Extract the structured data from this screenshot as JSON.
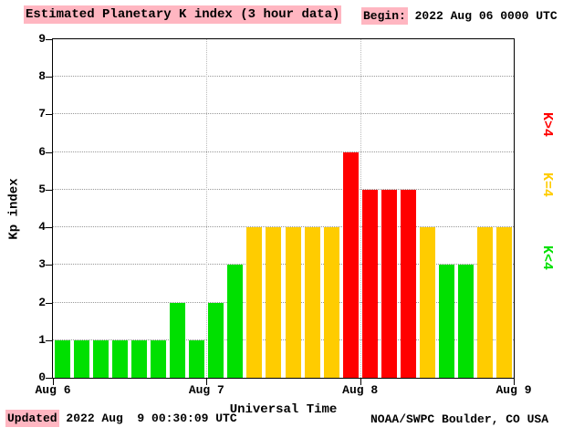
{
  "header": {
    "title": "Estimated Planetary K index (3 hour data)",
    "begin_label": "Begin:",
    "begin_value": " 2022 Aug 06 0000 UTC"
  },
  "axes": {
    "y_title": "Kp index",
    "x_title": "Universal Time"
  },
  "legend": {
    "items": [
      {
        "label": "K>4",
        "color_key": "red"
      },
      {
        "label": "K=4",
        "color_key": "yellow"
      },
      {
        "label": "K<4",
        "color_key": "green"
      }
    ]
  },
  "footer": {
    "updated_label": "Updated",
    "updated_value": " 2022 Aug  9 00:30:09 UTC",
    "credit": "NOAA/SWPC Boulder, CO USA"
  },
  "colors": {
    "green": "#00e000",
    "yellow": "#ffcc00",
    "red": "#ff0000",
    "highlight_pink": "#ffb6c1",
    "grid": "#999999"
  },
  "chart_data": {
    "type": "bar",
    "title": "Estimated Planetary K index (3 hour data)",
    "xlabel": "Universal Time",
    "ylabel": "Kp index",
    "ylim": [
      0,
      9
    ],
    "yticks": [
      0,
      1,
      2,
      3,
      4,
      5,
      6,
      7,
      8,
      9
    ],
    "x_day_labels": [
      "Aug 6",
      "Aug 7",
      "Aug 8",
      "Aug 9"
    ],
    "bar_interval_hours": 3,
    "begin_utc": "2022 Aug 06 0000 UTC",
    "values": [
      1,
      1,
      1,
      1,
      1,
      1,
      2,
      1,
      2,
      3,
      4,
      4,
      4,
      4,
      4,
      6,
      5,
      5,
      5,
      4,
      3,
      3,
      4,
      4
    ],
    "color_rule": {
      "green": "Kp < 4",
      "yellow": "Kp = 4",
      "red": "Kp > 4"
    },
    "grid": "dotted horizontal lines at each integer Kp, dotted vertical lines at day boundaries",
    "legend_position": "right"
  }
}
